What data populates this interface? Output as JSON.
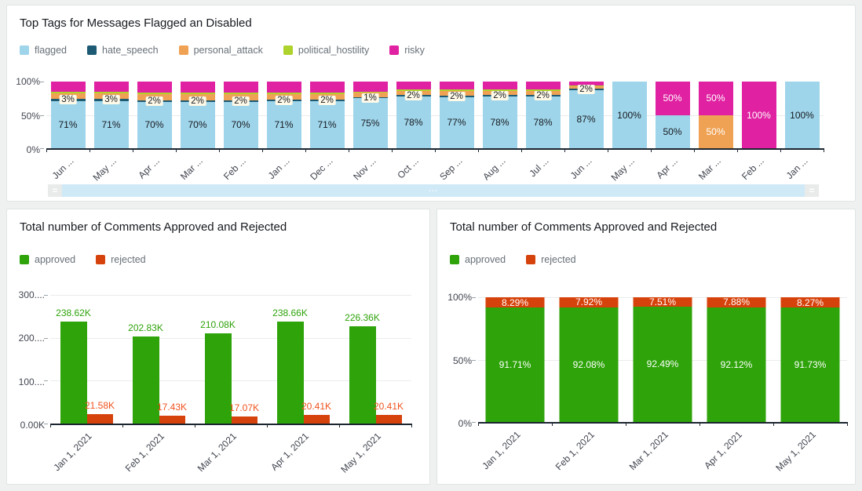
{
  "panels": {
    "top": {
      "title": "Top Tags for Messages Flagged an Disabled",
      "legend": [
        {
          "label": "flagged",
          "color": "#9FD5EA"
        },
        {
          "label": "hate_speech",
          "color": "#1D5A73"
        },
        {
          "label": "personal_attack",
          "color": "#F0A254"
        },
        {
          "label": "political_hostility",
          "color": "#AED32C"
        },
        {
          "label": "risky",
          "color": "#E021A2"
        }
      ],
      "colors": {
        "flagged": "#9FD5EA",
        "hate_speech": "#1D5A73",
        "personal_attack": "#F0A254",
        "political_hostility": "#AED32C",
        "risky": "#E021A2"
      },
      "y_ticks": [
        {
          "label": "100%",
          "grid": false
        },
        {
          "label": "50%",
          "grid": true
        },
        {
          "label": "0%",
          "grid": false
        }
      ],
      "chart_data": {
        "type": "bar",
        "stacked": true,
        "unit": "percent",
        "ylim": [
          0,
          100
        ],
        "categories": [
          "Jun ...",
          "May ...",
          "Apr ...",
          "Mar ...",
          "Feb ...",
          "Jan ...",
          "Dec ...",
          "Nov ...",
          "Oct ...",
          "Sep ...",
          "Aug ...",
          "Jul ...",
          "Jun ...",
          "May ...",
          "Apr ...",
          "Mar ...",
          "Feb ...",
          "Jan ..."
        ],
        "series_names": [
          "flagged",
          "hate_speech",
          "personal_attack",
          "political_hostility",
          "risky"
        ],
        "bars": [
          {
            "category": "Jun ...",
            "segments": [
              {
                "series": "flagged",
                "value": 71,
                "label": "71%",
                "label_style": "dark"
              },
              {
                "series": "hate_speech",
                "value": 3,
                "label": "3%",
                "label_style": "box"
              },
              {
                "series": "personal_attack",
                "value": 8
              },
              {
                "series": "political_hostility",
                "value": 3
              },
              {
                "series": "risky",
                "value": 15
              }
            ]
          },
          {
            "category": "May ...",
            "segments": [
              {
                "series": "flagged",
                "value": 71,
                "label": "71%",
                "label_style": "dark"
              },
              {
                "series": "hate_speech",
                "value": 3,
                "label": "3%",
                "label_style": "box"
              },
              {
                "series": "personal_attack",
                "value": 8
              },
              {
                "series": "political_hostility",
                "value": 3
              },
              {
                "series": "risky",
                "value": 15
              }
            ]
          },
          {
            "category": "Apr ...",
            "segments": [
              {
                "series": "flagged",
                "value": 70,
                "label": "70%",
                "label_style": "dark"
              },
              {
                "series": "hate_speech",
                "value": 2,
                "label": "2%",
                "label_style": "box"
              },
              {
                "series": "personal_attack",
                "value": 9
              },
              {
                "series": "political_hostility",
                "value": 3
              },
              {
                "series": "risky",
                "value": 16
              }
            ]
          },
          {
            "category": "Mar ...",
            "segments": [
              {
                "series": "flagged",
                "value": 70,
                "label": "70%",
                "label_style": "dark"
              },
              {
                "series": "hate_speech",
                "value": 2,
                "label": "2%",
                "label_style": "box"
              },
              {
                "series": "personal_attack",
                "value": 9
              },
              {
                "series": "political_hostility",
                "value": 3
              },
              {
                "series": "risky",
                "value": 16
              }
            ]
          },
          {
            "category": "Feb ...",
            "segments": [
              {
                "series": "flagged",
                "value": 70,
                "label": "70%",
                "label_style": "dark"
              },
              {
                "series": "hate_speech",
                "value": 2,
                "label": "2%",
                "label_style": "box"
              },
              {
                "series": "personal_attack",
                "value": 9
              },
              {
                "series": "political_hostility",
                "value": 3
              },
              {
                "series": "risky",
                "value": 16
              }
            ]
          },
          {
            "category": "Jan ...",
            "segments": [
              {
                "series": "flagged",
                "value": 71,
                "label": "71%",
                "label_style": "dark"
              },
              {
                "series": "hate_speech",
                "value": 2,
                "label": "2%",
                "label_style": "box"
              },
              {
                "series": "personal_attack",
                "value": 8
              },
              {
                "series": "political_hostility",
                "value": 3
              },
              {
                "series": "risky",
                "value": 16
              }
            ]
          },
          {
            "category": "Dec ...",
            "segments": [
              {
                "series": "flagged",
                "value": 71,
                "label": "71%",
                "label_style": "dark"
              },
              {
                "series": "hate_speech",
                "value": 2,
                "label": "2%",
                "label_style": "box"
              },
              {
                "series": "personal_attack",
                "value": 8
              },
              {
                "series": "political_hostility",
                "value": 3
              },
              {
                "series": "risky",
                "value": 16
              }
            ]
          },
          {
            "category": "Nov ...",
            "segments": [
              {
                "series": "flagged",
                "value": 75,
                "label": "75%",
                "label_style": "dark"
              },
              {
                "series": "hate_speech",
                "value": 1,
                "label": "1%",
                "label_style": "box"
              },
              {
                "series": "personal_attack",
                "value": 7
              },
              {
                "series": "political_hostility",
                "value": 2
              },
              {
                "series": "risky",
                "value": 15
              }
            ]
          },
          {
            "category": "Oct ...",
            "segments": [
              {
                "series": "flagged",
                "value": 78,
                "label": "78%",
                "label_style": "dark"
              },
              {
                "series": "hate_speech",
                "value": 2,
                "label": "2%",
                "label_style": "box"
              },
              {
                "series": "personal_attack",
                "value": 6
              },
              {
                "series": "political_hostility",
                "value": 2
              },
              {
                "series": "risky",
                "value": 12
              }
            ]
          },
          {
            "category": "Sep ...",
            "segments": [
              {
                "series": "flagged",
                "value": 77,
                "label": "77%",
                "label_style": "dark"
              },
              {
                "series": "hate_speech",
                "value": 2,
                "label": "2%",
                "label_style": "box"
              },
              {
                "series": "personal_attack",
                "value": 7
              },
              {
                "series": "political_hostility",
                "value": 2
              },
              {
                "series": "risky",
                "value": 12
              }
            ]
          },
          {
            "category": "Aug ...",
            "segments": [
              {
                "series": "flagged",
                "value": 78,
                "label": "78%",
                "label_style": "dark"
              },
              {
                "series": "hate_speech",
                "value": 2,
                "label": "2%",
                "label_style": "box"
              },
              {
                "series": "personal_attack",
                "value": 6
              },
              {
                "series": "political_hostility",
                "value": 2
              },
              {
                "series": "risky",
                "value": 12
              }
            ]
          },
          {
            "category": "Jul ...",
            "segments": [
              {
                "series": "flagged",
                "value": 78,
                "label": "78%",
                "label_style": "dark"
              },
              {
                "series": "hate_speech",
                "value": 2,
                "label": "2%",
                "label_style": "box"
              },
              {
                "series": "personal_attack",
                "value": 6
              },
              {
                "series": "political_hostility",
                "value": 2
              },
              {
                "series": "risky",
                "value": 12
              }
            ]
          },
          {
            "category": "Jun ...",
            "segments": [
              {
                "series": "flagged",
                "value": 87,
                "label": "87%",
                "label_style": "dark"
              },
              {
                "series": "hate_speech",
                "value": 2,
                "label": "2%",
                "label_style": "box"
              },
              {
                "series": "personal_attack",
                "value": 4
              },
              {
                "series": "political_hostility",
                "value": 1
              },
              {
                "series": "risky",
                "value": 6
              }
            ]
          },
          {
            "category": "May ...",
            "segments": [
              {
                "series": "flagged",
                "value": 100,
                "label": "100%",
                "label_style": "dark"
              }
            ]
          },
          {
            "category": "Apr ...",
            "segments": [
              {
                "series": "flagged",
                "value": 50,
                "label": "50%",
                "label_style": "dark"
              },
              {
                "series": "risky",
                "value": 50,
                "label": "50%",
                "label_style": "white"
              }
            ]
          },
          {
            "category": "Mar ...",
            "segments": [
              {
                "series": "personal_attack",
                "value": 50,
                "label": "50%",
                "label_style": "white"
              },
              {
                "series": "risky",
                "value": 50,
                "label": "50%",
                "label_style": "white"
              }
            ]
          },
          {
            "category": "Feb ...",
            "segments": [
              {
                "series": "risky",
                "value": 100,
                "label": "100%",
                "label_style": "white"
              }
            ]
          },
          {
            "category": "Jan ...",
            "segments": [
              {
                "series": "flagged",
                "value": 100,
                "label": "100%",
                "label_style": "dark"
              }
            ]
          }
        ]
      },
      "scrollbar": {
        "handle_glyph": "=",
        "grip_glyph": "⋯"
      }
    },
    "bottom_left": {
      "title": "Total number of Comments Approved and Rejected",
      "legend": [
        {
          "label": "approved",
          "color": "#2EA30A"
        },
        {
          "label": "rejected",
          "color": "#D6420B"
        }
      ],
      "y_ticks": [
        {
          "label": "300....",
          "grid": true
        },
        {
          "label": "200....",
          "grid": true
        },
        {
          "label": "100....",
          "grid": true
        },
        {
          "label": "0.00K",
          "grid": false
        }
      ],
      "chart_data": {
        "type": "bar",
        "grouped": true,
        "ylim_k": [
          0,
          300
        ],
        "categories": [
          "Jan 1, 2021",
          "Feb 1, 2021",
          "Mar 1, 2021",
          "Apr 1, 2021",
          "May 1, 2021"
        ],
        "series": [
          {
            "name": "approved",
            "color": "#2EA30A",
            "label_color": "#2EA30A",
            "values_k": [
              238.62,
              202.83,
              210.08,
              238.66,
              226.36
            ],
            "labels": [
              "238.62K",
              "202.83K",
              "210.08K",
              "238.66K",
              "226.36K"
            ]
          },
          {
            "name": "rejected",
            "color": "#D6420B",
            "label_color": "#F0521E",
            "values_k": [
              21.58,
              17.43,
              17.07,
              20.41,
              20.41
            ],
            "labels": [
              "21.58K",
              "17.43K",
              "17.07K",
              "20.41K",
              "20.41K"
            ]
          }
        ]
      }
    },
    "bottom_right": {
      "title": "Total number of Comments Approved and Rejected",
      "legend": [
        {
          "label": "approved",
          "color": "#2EA30A"
        },
        {
          "label": "rejected",
          "color": "#D6420B"
        }
      ],
      "y_ticks": [
        {
          "label": "100%",
          "grid": true
        },
        {
          "label": "50%",
          "grid": true
        },
        {
          "label": "0%",
          "grid": false
        }
      ],
      "chart_data": {
        "type": "bar",
        "stacked": true,
        "unit": "percent",
        "ylim": [
          0,
          100
        ],
        "categories": [
          "Jan 1, 2021",
          "Feb 1, 2021",
          "Mar 1, 2021",
          "Apr 1, 2021",
          "May 1, 2021"
        ],
        "series": [
          {
            "name": "approved",
            "color": "#2EA30A",
            "values": [
              91.71,
              92.08,
              92.49,
              92.12,
              91.73
            ],
            "labels": [
              "91.71%",
              "92.08%",
              "92.49%",
              "92.12%",
              "91.73%"
            ]
          },
          {
            "name": "rejected",
            "color": "#D6420B",
            "values": [
              8.29,
              7.92,
              7.51,
              7.88,
              8.27
            ],
            "labels": [
              "8.29%",
              "7.92%",
              "7.51%",
              "7.88%",
              "8.27%"
            ]
          }
        ]
      }
    }
  }
}
